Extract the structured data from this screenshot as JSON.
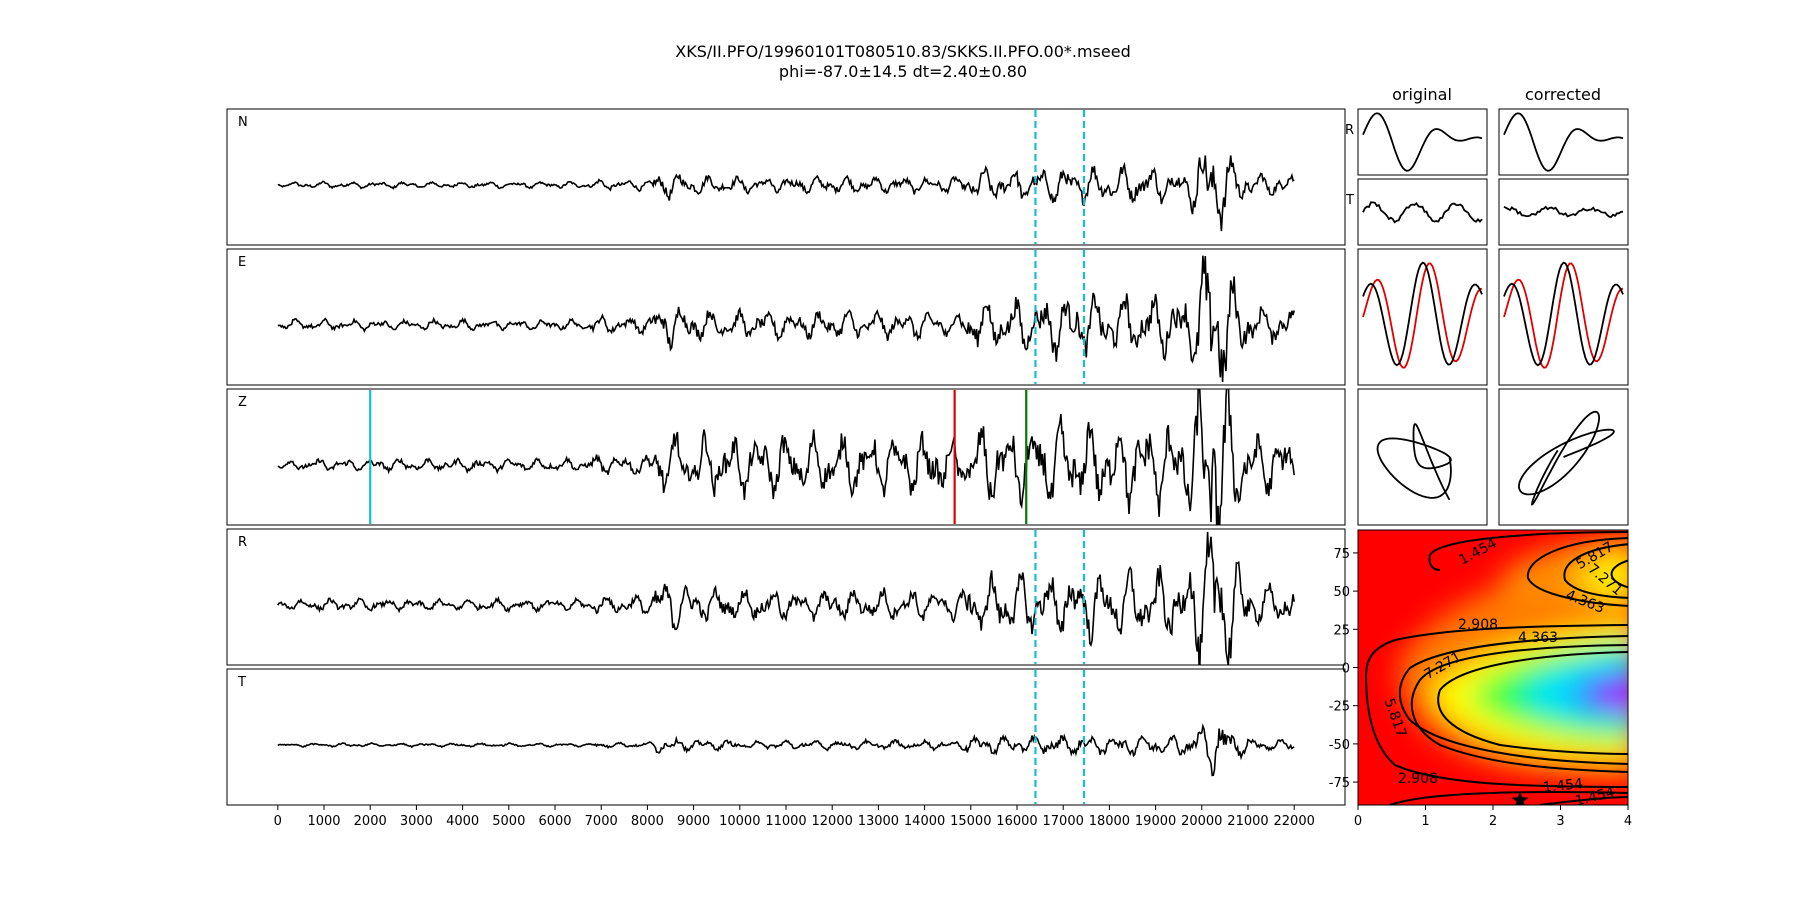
{
  "title_line1": "XKS/II.PFO/19960101T080510.83/SKKS.II.PFO.00*.mseed",
  "title_line2": "phi=-87.0±14.5 dt=2.40±0.80",
  "column_headers": [
    "original",
    "corrected"
  ],
  "chart_data": [
    {
      "type": "line",
      "name": "waveform-traces",
      "channels": [
        "N",
        "E",
        "Z",
        "R",
        "T"
      ],
      "xlim": [
        -1100,
        23100
      ],
      "x_range": [
        0,
        22000
      ],
      "x_ticks": [
        0,
        1000,
        2000,
        3000,
        4000,
        5000,
        6000,
        7000,
        8000,
        9000,
        10000,
        11000,
        12000,
        13000,
        14000,
        15000,
        16000,
        17000,
        18000,
        19000,
        20000,
        21000,
        22000
      ],
      "x_tick_labels": [
        "0",
        "1000",
        "2000",
        "3000",
        "4000",
        "5000",
        "6000",
        "7000",
        "8000",
        "9000",
        "10000",
        "11000",
        "12000",
        "13000",
        "14000",
        "15000",
        "16000",
        "17000",
        "18000",
        "19000",
        "20000",
        "21000",
        "22000"
      ],
      "analysis_window": [
        16400,
        17450
      ],
      "analysis_window_style": "cyan-dashed",
      "z_markers": [
        {
          "x": 2000,
          "color": "#17becf"
        },
        {
          "x": 14650,
          "color": "#e00000"
        },
        {
          "x": 16200,
          "color": "#007a00"
        }
      ],
      "trace_amplitude": {
        "N": 1.0,
        "E": 1.35,
        "Z": 1.6,
        "R": 1.5,
        "T": 0.45
      }
    },
    {
      "type": "line",
      "name": "particle-window-panels",
      "rows": [
        "R",
        "T",
        "RT-overlay",
        "particle-motion"
      ],
      "overlay_colors": [
        "#e00000",
        "#000000"
      ]
    },
    {
      "type": "heatmap",
      "name": "error-surface",
      "xlim": [
        0,
        4
      ],
      "ylim": [
        -90,
        90
      ],
      "x_ticks": [
        0,
        1,
        2,
        3,
        4
      ],
      "y_ticks": [
        75,
        50,
        25,
        0,
        -25,
        -50,
        -75
      ],
      "contour_labels": [
        "1.454",
        "5.817",
        "7.271",
        "4.363",
        "2.908",
        "4.363",
        "7.271",
        "5.817",
        "2.908",
        "1.454",
        "1.454"
      ],
      "best_fit": {
        "dt": 2.4,
        "phi": -87.0
      },
      "colormap": "gist_rainbow_r"
    }
  ]
}
